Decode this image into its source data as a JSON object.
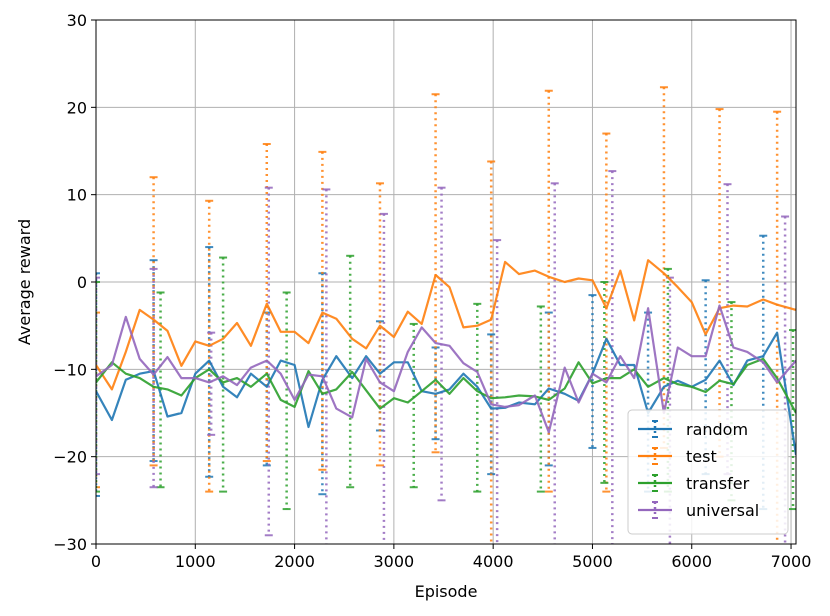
{
  "chart_data": {
    "type": "line",
    "xlabel": "Episode",
    "ylabel": "Average reward",
    "xlim": [
      0,
      7050
    ],
    "ylim": [
      -30,
      30
    ],
    "xticks": [
      0,
      1000,
      2000,
      3000,
      4000,
      5000,
      6000,
      7000
    ],
    "yticks": [
      -30,
      -20,
      -10,
      0,
      10,
      20,
      30
    ],
    "grid": true,
    "legend_position": "lower-right",
    "series": [
      {
        "name": "random",
        "color": "#1f77b4",
        "x": [
          0,
          160,
          300,
          440,
          580,
          720,
          860,
          1000,
          1140,
          1280,
          1420,
          1560,
          1720,
          1860,
          2000,
          2140,
          2280,
          2420,
          2580,
          2720,
          2860,
          3000,
          3140,
          3280,
          3420,
          3560,
          3700,
          3840,
          3980,
          4120,
          4260,
          4420,
          4560,
          4720,
          4860,
          5000,
          5140,
          5280,
          5420,
          5560,
          5720,
          5860,
          6000,
          6140,
          6280,
          6420,
          6560,
          6720,
          6860,
          7050
        ],
        "y": [
          -12.5,
          -15.8,
          -11.2,
          -10.5,
          -10.2,
          -15.4,
          -15.0,
          -10.5,
          -9.0,
          -12.0,
          -13.2,
          -10.5,
          -12.0,
          -9.0,
          -9.5,
          -16.6,
          -11.2,
          -8.5,
          -11.0,
          -8.5,
          -10.5,
          -9.2,
          -9.2,
          -12.5,
          -12.8,
          -12.3,
          -10.5,
          -12.0,
          -14.5,
          -14.4,
          -13.8,
          -14.0,
          -12.2,
          -12.8,
          -13.6,
          -10.5,
          -6.5,
          -9.5,
          -9.5,
          -15.0,
          -12.0,
          -11.3,
          -12.0,
          -11.2,
          -9.0,
          -11.8,
          -9.0,
          -8.5,
          -5.8,
          -19.8
        ],
        "errorbars": [
          {
            "x": 0,
            "low": -24.5,
            "high": 1.0
          },
          {
            "x": 580,
            "low": -20.5,
            "high": 2.5
          },
          {
            "x": 1140,
            "low": -22.3,
            "high": 4.0
          },
          {
            "x": 1720,
            "low": -21.0,
            "high": -3.5
          },
          {
            "x": 2280,
            "low": -24.3,
            "high": 1.0
          },
          {
            "x": 2860,
            "low": -17.0,
            "high": -4.5
          },
          {
            "x": 3420,
            "low": -18.0,
            "high": -7.5
          },
          {
            "x": 3980,
            "low": -22.0,
            "high": -6.0
          },
          {
            "x": 4560,
            "low": -21.0,
            "high": -3.5
          },
          {
            "x": 5000,
            "low": -19.0,
            "high": -1.5
          },
          {
            "x": 5560,
            "low": -24.0,
            "high": -3.5
          },
          {
            "x": 6140,
            "low": -22.0,
            "high": 0.2
          },
          {
            "x": 6720,
            "low": -26.0,
            "high": 5.3
          }
        ]
      },
      {
        "name": "test",
        "color": "#ff7f0e",
        "x": [
          0,
          160,
          300,
          440,
          580,
          720,
          860,
          1000,
          1140,
          1280,
          1420,
          1560,
          1720,
          1860,
          2000,
          2140,
          2280,
          2420,
          2580,
          2720,
          2860,
          3000,
          3140,
          3280,
          3420,
          3560,
          3700,
          3840,
          3980,
          4120,
          4260,
          4420,
          4560,
          4720,
          4860,
          5000,
          5140,
          5280,
          5420,
          5560,
          5720,
          5860,
          6000,
          6140,
          6280,
          6420,
          6560,
          6720,
          6860,
          7050
        ],
        "y": [
          -9.5,
          -12.3,
          -8.0,
          -3.2,
          -4.3,
          -5.6,
          -9.6,
          -6.8,
          -7.3,
          -6.5,
          -4.7,
          -7.3,
          -2.5,
          -5.7,
          -5.7,
          -7.0,
          -3.5,
          -4.2,
          -6.5,
          -7.6,
          -5.0,
          -6.3,
          -3.4,
          -4.8,
          0.8,
          -0.6,
          -5.2,
          -5.0,
          -4.3,
          2.3,
          0.9,
          1.3,
          0.6,
          0.0,
          0.4,
          0.2,
          -3.0,
          1.3,
          -4.4,
          2.5,
          1.0,
          -0.6,
          -2.3,
          -6.0,
          -3.0,
          -2.7,
          -2.8,
          -2.0,
          -2.6,
          -3.2
        ],
        "errorbars": [
          {
            "x": 0,
            "low": -23.5,
            "high": -3.5
          },
          {
            "x": 580,
            "low": -21.0,
            "high": 12.0
          },
          {
            "x": 1140,
            "low": -24.0,
            "high": 9.3
          },
          {
            "x": 1720,
            "low": -20.5,
            "high": 15.8
          },
          {
            "x": 2280,
            "low": -21.5,
            "high": 14.9
          },
          {
            "x": 2860,
            "low": -21.0,
            "high": 11.3
          },
          {
            "x": 3420,
            "low": -19.5,
            "high": 21.5
          },
          {
            "x": 3980,
            "low": -31.0,
            "high": 13.8
          },
          {
            "x": 4560,
            "low": -24.0,
            "high": 21.9
          },
          {
            "x": 5140,
            "low": -24.0,
            "high": 17.0
          },
          {
            "x": 5720,
            "low": -19.0,
            "high": 22.3
          },
          {
            "x": 6280,
            "low": -20.0,
            "high": 19.8
          },
          {
            "x": 6860,
            "low": -30.5,
            "high": 19.5
          }
        ]
      },
      {
        "name": "transfer",
        "color": "#2ca02c",
        "x": [
          0,
          160,
          300,
          440,
          580,
          720,
          860,
          1000,
          1140,
          1280,
          1420,
          1560,
          1720,
          1860,
          2000,
          2140,
          2280,
          2420,
          2580,
          2720,
          2860,
          3000,
          3140,
          3280,
          3420,
          3560,
          3700,
          3840,
          3980,
          4120,
          4260,
          4420,
          4560,
          4720,
          4860,
          5000,
          5140,
          5280,
          5420,
          5560,
          5720,
          5860,
          6000,
          6140,
          6280,
          6420,
          6560,
          6720,
          6860,
          7050
        ],
        "y": [
          -11.5,
          -9.2,
          -10.5,
          -11.0,
          -12.0,
          -12.3,
          -13.0,
          -11.0,
          -10.0,
          -11.5,
          -11.0,
          -12.0,
          -10.5,
          -13.5,
          -14.3,
          -10.2,
          -12.8,
          -12.3,
          -10.3,
          -12.4,
          -14.5,
          -13.3,
          -13.8,
          -12.5,
          -11.2,
          -12.8,
          -11.0,
          -12.5,
          -13.3,
          -13.2,
          -13.0,
          -13.1,
          -13.5,
          -12.2,
          -9.2,
          -11.6,
          -11.0,
          -11.0,
          -10.0,
          -12.0,
          -11.0,
          -11.7,
          -12.0,
          -12.6,
          -11.3,
          -11.7,
          -9.5,
          -8.8,
          -11.0,
          -15.0
        ],
        "errorbars": [
          {
            "x": 0,
            "low": -24.0,
            "high": 0.0
          },
          {
            "x": 650,
            "low": -23.5,
            "high": -1.2
          },
          {
            "x": 1280,
            "low": -24.0,
            "high": 2.8
          },
          {
            "x": 1920,
            "low": -26.0,
            "high": -1.2
          },
          {
            "x": 2560,
            "low": -23.5,
            "high": 3.0
          },
          {
            "x": 3200,
            "low": -23.5,
            "high": -4.8
          },
          {
            "x": 3840,
            "low": -24.0,
            "high": -2.5
          },
          {
            "x": 4480,
            "low": -24.0,
            "high": -2.8
          },
          {
            "x": 5120,
            "low": -23.0,
            "high": 0.0
          },
          {
            "x": 5760,
            "low": -24.0,
            "high": 1.5
          },
          {
            "x": 6400,
            "low": -25.0,
            "high": -2.3
          },
          {
            "x": 7020,
            "low": -26.0,
            "high": -5.5
          }
        ]
      },
      {
        "name": "universal",
        "color": "#9467bd",
        "x": [
          0,
          160,
          300,
          440,
          580,
          720,
          860,
          1000,
          1140,
          1280,
          1420,
          1560,
          1720,
          1860,
          2000,
          2140,
          2280,
          2420,
          2580,
          2720,
          2860,
          3000,
          3140,
          3280,
          3420,
          3560,
          3700,
          3840,
          3980,
          4120,
          4260,
          4420,
          4560,
          4720,
          4860,
          5000,
          5140,
          5280,
          5420,
          5560,
          5720,
          5860,
          6000,
          6140,
          6280,
          6420,
          6560,
          6720,
          6860,
          7050
        ],
        "y": [
          -10.8,
          -9.5,
          -4.0,
          -8.8,
          -10.6,
          -8.6,
          -11.0,
          -11.0,
          -11.5,
          -10.8,
          -11.8,
          -9.8,
          -9.0,
          -10.5,
          -13.5,
          -10.6,
          -10.8,
          -14.5,
          -15.5,
          -8.8,
          -11.5,
          -12.5,
          -8.0,
          -5.2,
          -7.0,
          -7.3,
          -9.3,
          -10.3,
          -14.0,
          -14.3,
          -14.1,
          -13.0,
          -17.2,
          -9.8,
          -13.8,
          -10.5,
          -11.5,
          -8.5,
          -11.0,
          -3.0,
          -15.0,
          -7.5,
          -8.5,
          -8.5,
          -2.7,
          -7.5,
          -8.0,
          -9.2,
          -11.5,
          -9.0
        ],
        "errorbars": [
          {
            "x": 0,
            "low": -22.0,
            "high": 0.5
          },
          {
            "x": 580,
            "low": -23.5,
            "high": 1.5
          },
          {
            "x": 1160,
            "low": -17.5,
            "high": -5.8
          },
          {
            "x": 1740,
            "low": -29.0,
            "high": 10.8
          },
          {
            "x": 2320,
            "low": -31.0,
            "high": 10.6
          },
          {
            "x": 2900,
            "low": -31.0,
            "high": 7.8
          },
          {
            "x": 3480,
            "low": -25.0,
            "high": 10.8
          },
          {
            "x": 4040,
            "low": -31.0,
            "high": 4.8
          },
          {
            "x": 4620,
            "low": -31.0,
            "high": 11.3
          },
          {
            "x": 5200,
            "low": -31.0,
            "high": 12.7
          },
          {
            "x": 5780,
            "low": -31.0,
            "high": 0.5
          },
          {
            "x": 6360,
            "low": -22.0,
            "high": 11.2
          },
          {
            "x": 6940,
            "low": -31.0,
            "high": 7.5
          }
        ]
      }
    ]
  }
}
